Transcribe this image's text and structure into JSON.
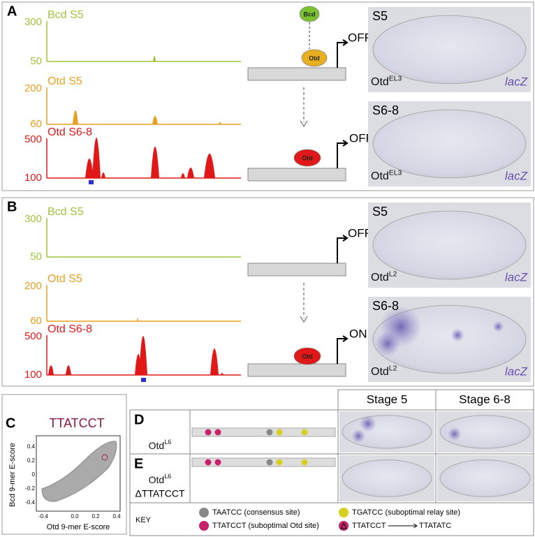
{
  "panel_a": {
    "label": "A",
    "tracks": [
      {
        "name": "Bcd S5",
        "top": 300,
        "bottom": 50
      },
      {
        "name": "Otd S5",
        "top": 200,
        "bottom": 60
      },
      {
        "name": "Otd S6-8",
        "top": 500,
        "bottom": 100
      }
    ],
    "diagram": {
      "factors": [
        "Bcd",
        "Otd",
        "Otd"
      ],
      "states": [
        "OFF",
        "OFF"
      ]
    },
    "images": [
      {
        "stage": "S5",
        "genotype": "Otd",
        "genotype_sup": "EL3",
        "reporter": "lacZ"
      },
      {
        "stage": "S6-8",
        "genotype": "Otd",
        "genotype_sup": "EL3",
        "reporter": "lacZ"
      }
    ]
  },
  "panel_b": {
    "label": "B",
    "tracks": [
      {
        "name": "Bcd S5",
        "top": 300,
        "bottom": 50
      },
      {
        "name": "Otd S5",
        "top": 200,
        "bottom": 60
      },
      {
        "name": "Otd S6-8",
        "top": 500,
        "bottom": 100
      }
    ],
    "diagram": {
      "factors": [
        "Otd"
      ],
      "states": [
        "OFF",
        "ON"
      ]
    },
    "images": [
      {
        "stage": "S5",
        "genotype": "Otd",
        "genotype_sup": "L2",
        "reporter": "lacZ"
      },
      {
        "stage": "S6-8",
        "genotype": "Otd",
        "genotype_sup": "L2",
        "reporter": "lacZ"
      }
    ]
  },
  "panel_c": {
    "label": "C",
    "title": "TTATCCT",
    "x_label": "Otd 9-mer E-score",
    "y_label": "Bcd 9-mer E-score",
    "xticks": [
      "-0.4",
      "0.0",
      "0.2",
      "0.4"
    ],
    "yticks": [
      "0.4",
      "0.2",
      "0",
      "-0.2",
      "-0.4"
    ]
  },
  "table": {
    "headers": [
      "Stage 5",
      "Stage 6-8"
    ],
    "rows": [
      {
        "label": "D",
        "genotype": "Otd",
        "genotype_sup": "L6"
      },
      {
        "label": "E",
        "genotype": "Otd",
        "genotype_sup": "L6",
        "deletion": "ΔTTATCCT"
      }
    ]
  },
  "key": {
    "title": "KEY",
    "items": [
      "TAATCC (consensus site)",
      "TTATCCT (suboptimal Otd site)",
      "TGATCC (suboptimal relay site)"
    ],
    "mutation": {
      "from": "TTATCCT",
      "to": "TTATATC"
    }
  }
}
